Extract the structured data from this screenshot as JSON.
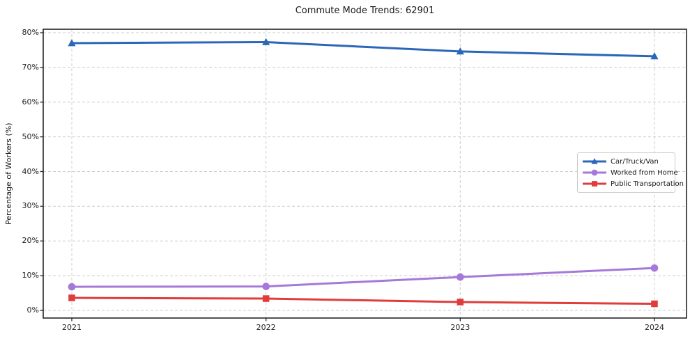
{
  "chart_data": {
    "type": "line",
    "title": "Commute Mode Trends: 62901",
    "xlabel": "",
    "ylabel": "Percentage of Workers (%)",
    "categories": [
      "2021",
      "2022",
      "2023",
      "2024"
    ],
    "series": [
      {
        "name": "Car/Truck/Van",
        "color": "#2b67b8",
        "marker": "triangle",
        "values": [
          77.0,
          77.3,
          74.6,
          73.2
        ]
      },
      {
        "name": "Worked from Home",
        "color": "#a579d9",
        "marker": "circle",
        "values": [
          6.8,
          6.9,
          9.6,
          12.2
        ]
      },
      {
        "name": "Public Transportation",
        "color": "#e03c3c",
        "marker": "square",
        "values": [
          3.6,
          3.4,
          2.4,
          1.9
        ]
      }
    ],
    "ylim": [
      0,
      80
    ],
    "yticks": [
      0,
      10,
      20,
      30,
      40,
      50,
      60,
      70,
      80
    ],
    "ytick_labels": [
      "0%",
      "10%",
      "20%",
      "30%",
      "40%",
      "50%",
      "60%",
      "70%",
      "80%"
    ],
    "grid": true,
    "grid_style": "dashed",
    "legend_position": "center-right",
    "colors": {
      "grid": "#cccccc",
      "spine": "#262626",
      "text": "#1a1a1a"
    }
  }
}
